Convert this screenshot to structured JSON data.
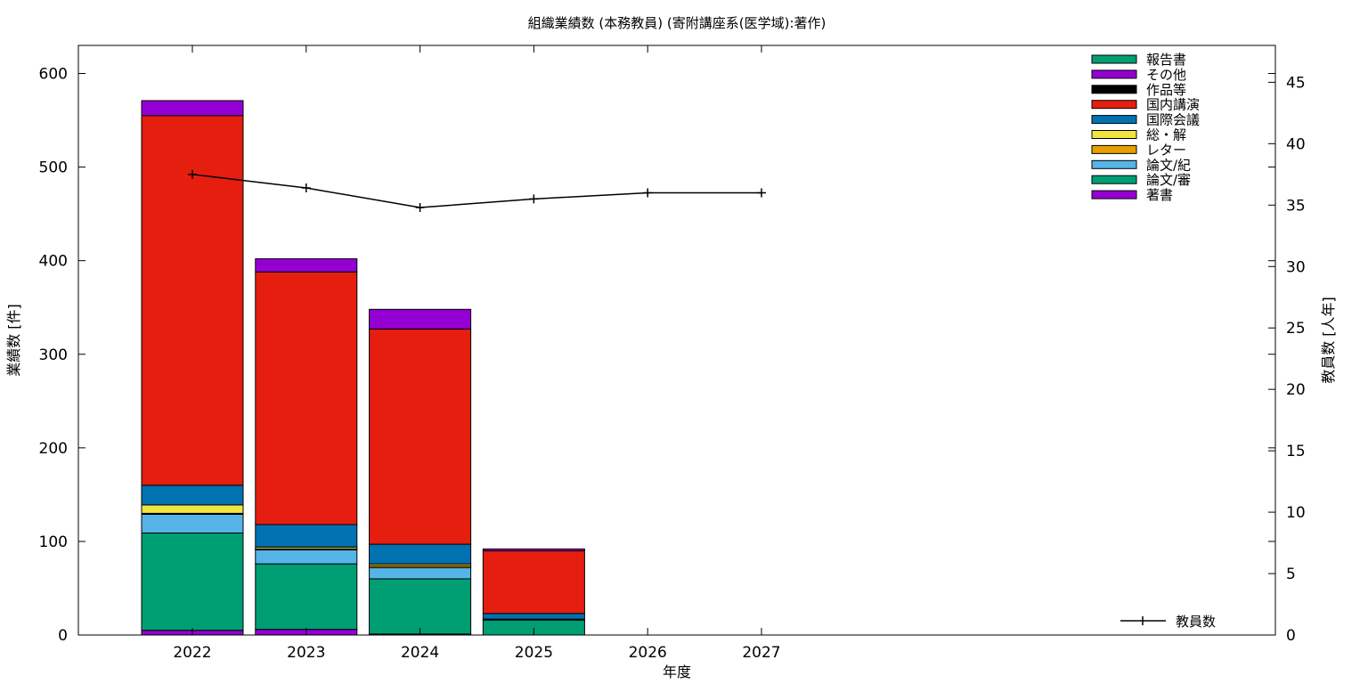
{
  "chart_data": {
    "type": "bar",
    "title": "組織業績数 (本務教員) (寄附講座系(医学域):著作)",
    "xlabel": "年度",
    "ylabel": "業績数 [件]",
    "y2label": "教員数 [人年]",
    "categories": [
      "2022",
      "2023",
      "2024",
      "2025",
      "2026",
      "2027"
    ],
    "ylim": [
      0,
      630
    ],
    "y2lim": [
      0,
      48
    ],
    "yticks": [
      0,
      100,
      200,
      300,
      400,
      500,
      600
    ],
    "y2ticks": [
      0,
      5,
      10,
      15,
      20,
      25,
      30,
      35,
      40,
      45
    ],
    "legend_position": "top-right",
    "stacked": true,
    "series": [
      {
        "name": "著書",
        "color": "#9400d3",
        "values": [
          5,
          6,
          1,
          0,
          0,
          0
        ]
      },
      {
        "name": "論文/審",
        "color": "#009e73",
        "values": [
          104,
          70,
          59,
          16,
          0,
          0
        ]
      },
      {
        "name": "論文/紀",
        "color": "#56b4e9",
        "values": [
          20,
          15,
          12,
          1,
          0,
          0
        ]
      },
      {
        "name": "レター",
        "color": "#e69f00",
        "values": [
          1,
          1,
          2,
          0,
          0,
          0
        ]
      },
      {
        "name": "総・解",
        "color": "#f0e442",
        "values": [
          9,
          2,
          2,
          0,
          0,
          0
        ]
      },
      {
        "name": "国際会議",
        "color": "#0072b2",
        "values": [
          21,
          24,
          21,
          6,
          0,
          0
        ]
      },
      {
        "name": "国内講演",
        "color": "#e51e10",
        "values": [
          395,
          270,
          230,
          67,
          0,
          0
        ]
      },
      {
        "name": "作品等",
        "color": "#000000",
        "values": [
          0,
          0,
          0,
          0,
          0,
          0
        ]
      },
      {
        "name": "その他",
        "color": "#9400d3",
        "values": [
          16,
          14,
          21,
          2,
          0,
          0
        ]
      },
      {
        "name": "報告書",
        "color": "#009e73",
        "values": [
          0,
          0,
          0,
          0,
          0,
          0
        ]
      }
    ],
    "line_series": {
      "name": "教員数",
      "axis": "y2",
      "color": "#000000",
      "values": [
        37.5,
        36.4,
        34.8,
        35.5,
        36.0,
        36.0
      ]
    }
  }
}
